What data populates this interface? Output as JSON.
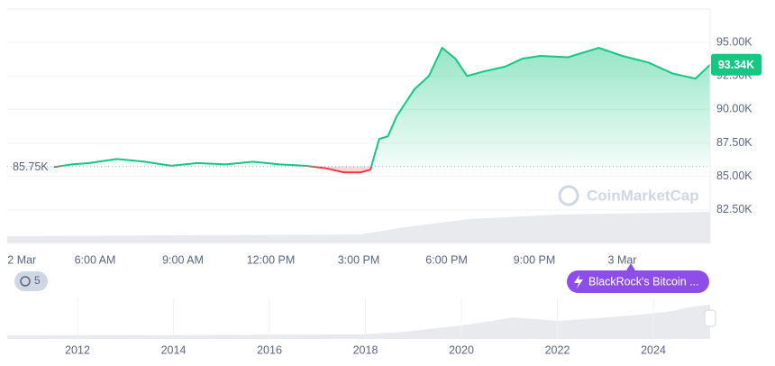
{
  "chart_data": {
    "type": "line",
    "x": [
      4.6,
      5.2,
      5.8,
      6.75,
      7.7,
      8.6,
      9.5,
      10.45,
      11.4,
      12.3,
      13.2,
      13.9,
      14.5,
      15.06,
      15.4,
      15.7,
      16.0,
      16.3,
      16.6,
      16.9,
      17.4,
      17.85,
      18.3,
      18.7,
      19.2,
      20.0,
      20.6,
      21.2,
      22.15,
      23.2,
      24.0,
      24.9,
      25.7,
      26.5,
      27.0
    ],
    "series": [
      {
        "color": "#16c784",
        "values": [
          85.7,
          85.9,
          86.0,
          86.3,
          86.1,
          85.8,
          86.0,
          85.9,
          86.1,
          85.9,
          85.8,
          85.6,
          85.3,
          85.3,
          85.5,
          87.8,
          88.0,
          89.5,
          90.5,
          91.5,
          92.5,
          94.6,
          93.8,
          92.5,
          92.8,
          93.2,
          93.8,
          94.0,
          93.9,
          94.6,
          94.0,
          93.5,
          92.7,
          92.3,
          93.34
        ]
      }
    ],
    "down_color": "#ea3943",
    "xlim": [
      3,
      27
    ],
    "xticks": [
      {
        "value": 3.5,
        "label": "2 Mar"
      },
      {
        "value": 6,
        "label": "6:00 AM"
      },
      {
        "value": 9,
        "label": "9:00 AM"
      },
      {
        "value": 12,
        "label": "12:00 PM"
      },
      {
        "value": 15,
        "label": "3:00 PM"
      },
      {
        "value": 18,
        "label": "6:00 PM"
      },
      {
        "value": 21,
        "label": "9:00 PM"
      },
      {
        "value": 24,
        "label": "3 Mar"
      }
    ],
    "ylim": [
      80,
      97.5
    ],
    "yticks": [
      {
        "value": 95,
        "label": "95.00K"
      },
      {
        "value": 92.5,
        "label": "92.50K"
      },
      {
        "value": 90,
        "label": "90.00K"
      },
      {
        "value": 87.5,
        "label": "87.50K"
      },
      {
        "value": 85,
        "label": "85.00K"
      },
      {
        "value": 82.5,
        "label": "82.50K"
      }
    ],
    "grid": true,
    "baseline": {
      "value": 85.75,
      "label": "85.75K"
    },
    "last_price": {
      "value": 93.34,
      "label": "93.34K"
    },
    "watermark": "CoinMarketCap",
    "history_count": "5",
    "news_badge": "BlackRock's Bitcoin ...",
    "navigator_ticks": [
      "2012",
      "2014",
      "2016",
      "2018",
      "2020",
      "2022",
      "2024"
    ]
  }
}
